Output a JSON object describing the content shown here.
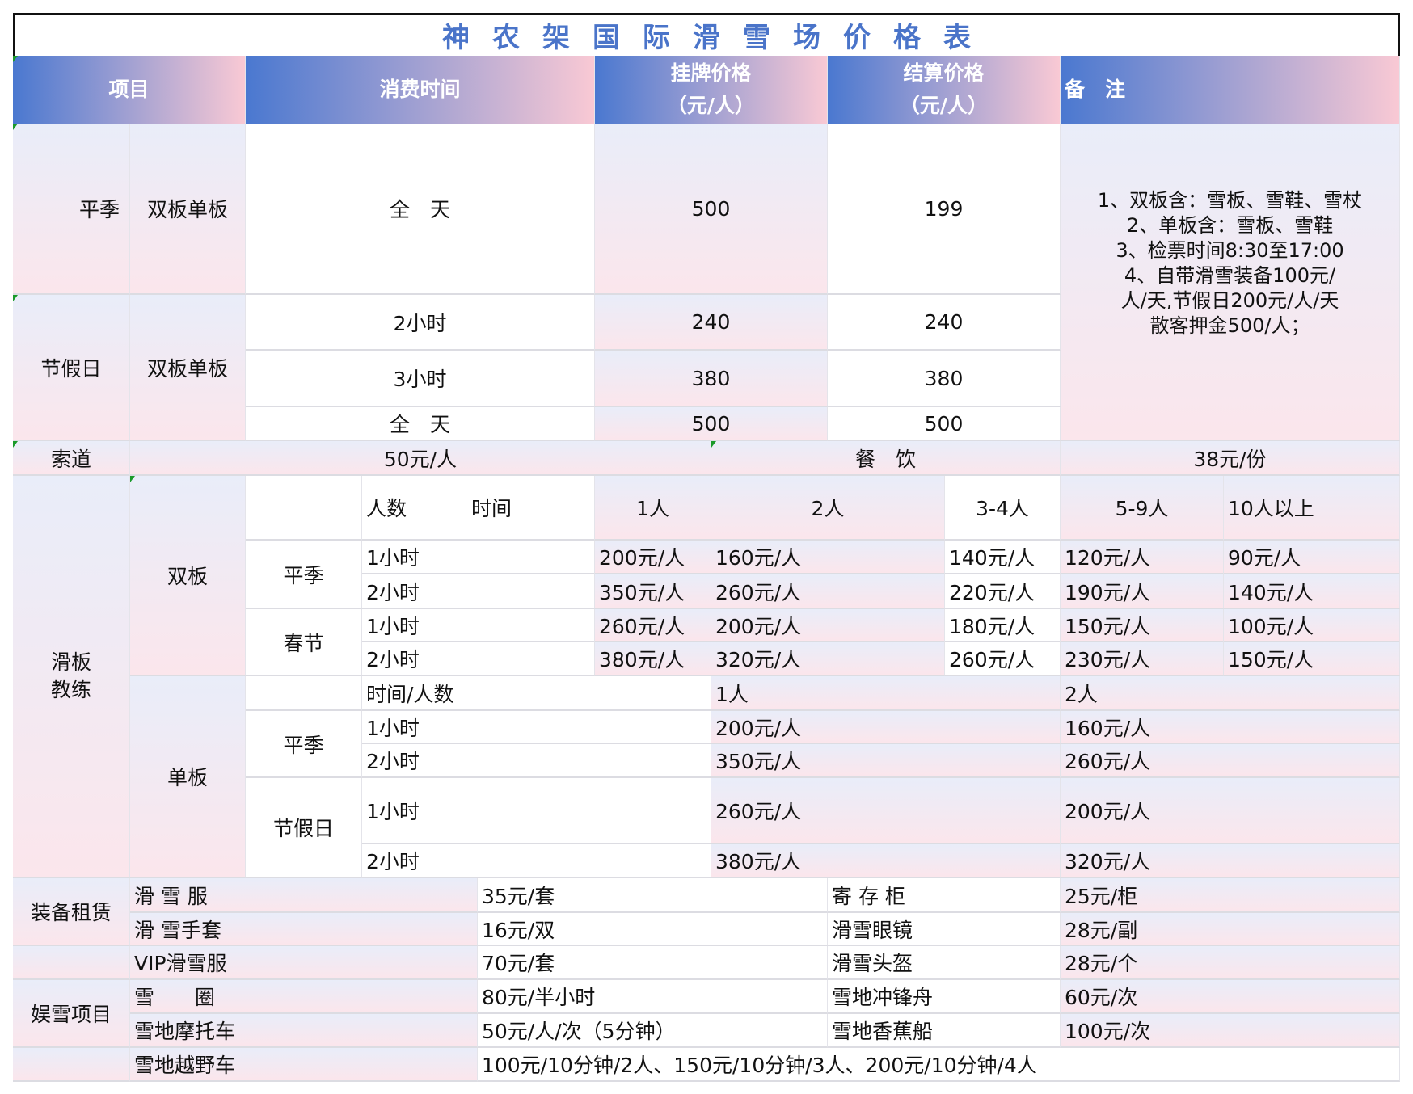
{
  "title": "神农架国际滑雪场价格表",
  "header": {
    "item": "项目",
    "time": "消费时间",
    "list_price": "挂牌价格",
    "list_unit": "（元/人）",
    "settle_price": "结算价格",
    "settle_unit": "（元/人）",
    "remark": "备　注"
  },
  "ticket": {
    "regular": {
      "season": "平季",
      "type": "双板单板",
      "time": "全　天",
      "list": "500",
      "settle": "199"
    },
    "holiday": {
      "season": "节假日",
      "type": "双板单板",
      "rows": [
        {
          "time": "2小时",
          "list": "240",
          "settle": "240"
        },
        {
          "time": "3小时",
          "list": "380",
          "settle": "380"
        },
        {
          "time": "全　天",
          "list": "500",
          "settle": "500"
        }
      ]
    },
    "notes": [
      "1、双板含：雪板、雪鞋、雪杖",
      "2、单板含：雪板、雪鞋",
      "3、检票时间8:30至17:00",
      "4、自带滑雪装备100元/",
      "人/天,节假日200元/人/天",
      "散客押金500/人；"
    ]
  },
  "misc": {
    "ropeway": "索道",
    "ropeway_price": "50元/人",
    "dining": "餐　饮",
    "dining_price": "38元/份"
  },
  "coach": {
    "label": "滑板\n教练",
    "double": {
      "label": "双板",
      "head_people": "人数",
      "head_time": "时间",
      "cols": [
        "1人",
        "2人",
        "3-4人",
        "5-9人",
        "10人以上"
      ],
      "groups": [
        {
          "season": "平季",
          "rows": [
            {
              "time": "1小时",
              "prices": [
                "200元/人",
                "160元/人",
                "140元/人",
                "120元/人",
                "90元/人"
              ]
            },
            {
              "time": "2小时",
              "prices": [
                "350元/人",
                "260元/人",
                "220元/人",
                "190元/人",
                "140元/人"
              ]
            }
          ]
        },
        {
          "season": "春节",
          "rows": [
            {
              "time": "1小时",
              "prices": [
                "260元/人",
                "200元/人",
                "180元/人",
                "150元/人",
                "100元/人"
              ]
            },
            {
              "time": "2小时",
              "prices": [
                "380元/人",
                "320元/人",
                "260元/人",
                "230元/人",
                "150元/人"
              ]
            }
          ]
        }
      ]
    },
    "single": {
      "label": "单板",
      "head": "时间/人数",
      "cols": [
        "1人",
        "2人"
      ],
      "groups": [
        {
          "season": "平季",
          "rows": [
            {
              "time": "1小时",
              "prices": [
                "200元/人",
                "160元/人"
              ]
            },
            {
              "time": "2小时",
              "prices": [
                "350元/人",
                "260元/人"
              ]
            }
          ]
        },
        {
          "season": "节假日",
          "rows": [
            {
              "time": "1小时",
              "prices": [
                "260元/人",
                "200元/人"
              ]
            },
            {
              "time": "2小时",
              "prices": [
                "380元/人",
                "320元/人"
              ]
            }
          ]
        }
      ]
    }
  },
  "rental": {
    "label": "装备租赁",
    "rows": [
      {
        "item": "滑 雪 服",
        "price": "35元/套",
        "item2": "寄 存 柜",
        "price2": "25元/柜"
      },
      {
        "item": "滑 雪手套",
        "price": "16元/双",
        "item2": "滑雪眼镜",
        "price2": "28元/副"
      },
      {
        "item": "VIP滑雪服",
        "price": "70元/套",
        "item2": "滑雪头盔",
        "price2": "28元/个"
      }
    ]
  },
  "fun": {
    "label": "娱雪项目",
    "rows": [
      {
        "item": "雪　　圈",
        "price": "80元/半小时",
        "item2": "雪地冲锋舟",
        "price2": "60元/次"
      },
      {
        "item": "雪地摩托车",
        "price": "50元/人/次（5分钟）",
        "item2": "雪地香蕉船",
        "price2": "100元/次"
      }
    ],
    "last": {
      "item": "雪地越野车",
      "price": "100元/10分钟/2人、150元/10分钟/3人、200元/10分钟/4人"
    }
  },
  "colors": {
    "title": "#4a74c9",
    "header_start": "#4a78d0",
    "header_end": "#f9c9d4"
  }
}
